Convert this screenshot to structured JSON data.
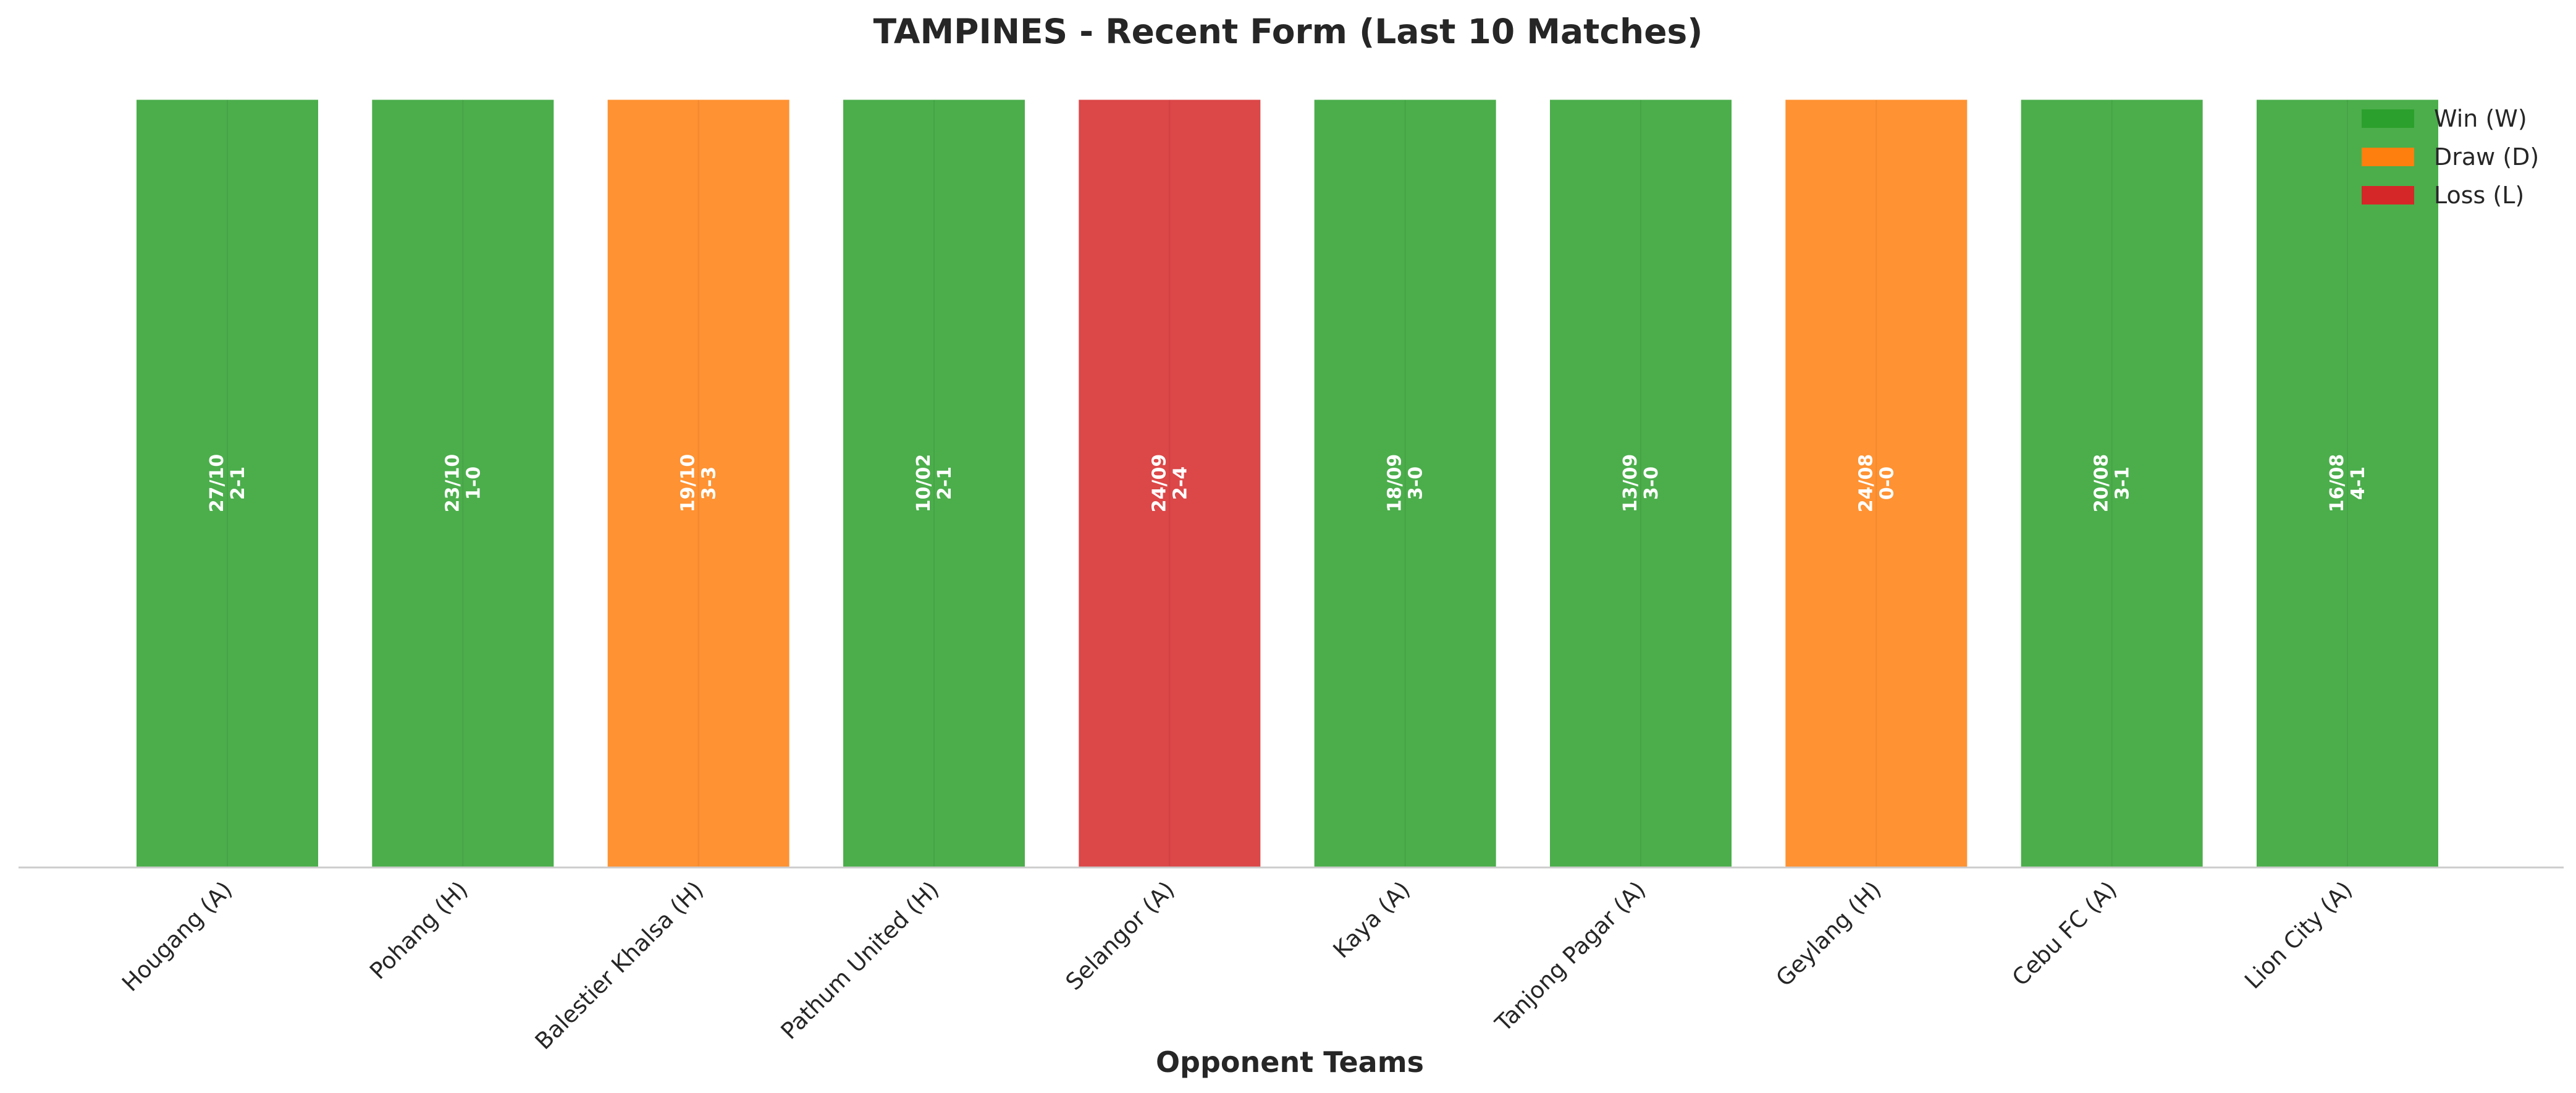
{
  "chart_data": {
    "type": "bar",
    "title": "TAMPINES - Recent Form (Last 10 Matches)",
    "xlabel": "Opponent Teams",
    "ylabel": "",
    "ylim": [
      0,
      1
    ],
    "grid": false,
    "legend_position": "top-right",
    "categories": [
      "Hougang (A)",
      "Pohang (H)",
      "Balestier Khalsa (H)",
      "Pathum United (H)",
      "Selangor (A)",
      "Kaya (A)",
      "Tanjong Pagar (A)",
      "Geylang (H)",
      "Cebu FC (A)",
      "Lion City (A)"
    ],
    "values": [
      1,
      1,
      1,
      1,
      1,
      1,
      1,
      1,
      1,
      1
    ],
    "results": [
      "W",
      "W",
      "D",
      "W",
      "L",
      "W",
      "W",
      "D",
      "W",
      "W"
    ],
    "dates": [
      "27/10",
      "23/10",
      "19/10",
      "10/02",
      "24/09",
      "18/09",
      "13/09",
      "24/08",
      "20/08",
      "16/08"
    ],
    "scores": [
      "2-1",
      "1-0",
      "3-3",
      "2-1",
      "2-4",
      "3-0",
      "3-0",
      "0-0",
      "3-1",
      "4-1"
    ],
    "colors": {
      "W": "#2ca02c",
      "D": "#ff7f0e",
      "L": "#d62728"
    },
    "legend": [
      {
        "key": "W",
        "label": "Win (W)"
      },
      {
        "key": "D",
        "label": "Draw (D)"
      },
      {
        "key": "L",
        "label": "Loss (L)"
      }
    ]
  }
}
